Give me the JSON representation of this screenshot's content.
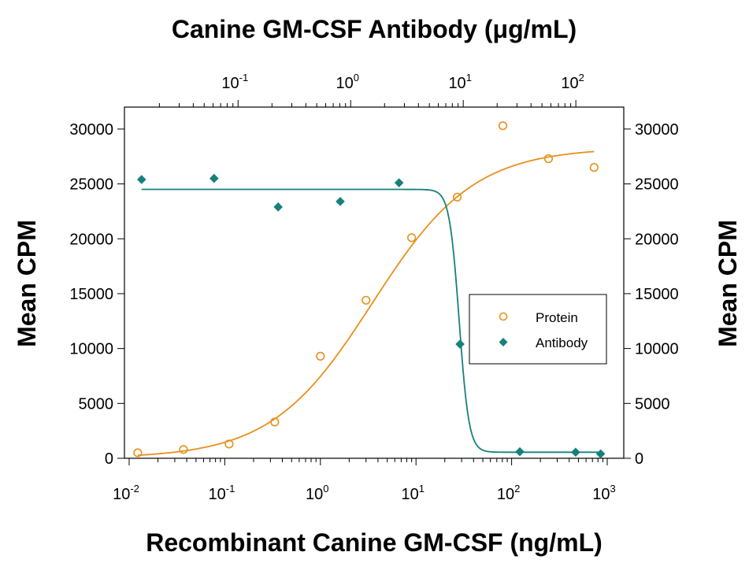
{
  "chart_data": {
    "type": "scatter",
    "title": "Canine GM-CSF Antibody (μg/mL)",
    "xlabel": "Recombinant Canine GM-CSF (ng/mL)",
    "x2label": "Canine GM-CSF Antibody (μg/mL)",
    "ylabel": "Mean CPM",
    "y2label": "Mean CPM",
    "x_scale": "log",
    "xlim": [
      0.01,
      1000
    ],
    "x2_scale": "log",
    "x2lim": [
      0.0115,
      190
    ],
    "ylim": [
      0,
      32000
    ],
    "x_ticks": [
      {
        "base": "10",
        "exp": "-2",
        "value": 0.01
      },
      {
        "base": "10",
        "exp": "-1",
        "value": 0.1
      },
      {
        "base": "10",
        "exp": "0",
        "value": 1
      },
      {
        "base": "10",
        "exp": "1",
        "value": 10
      },
      {
        "base": "10",
        "exp": "2",
        "value": 100
      },
      {
        "base": "10",
        "exp": "3",
        "value": 1000
      }
    ],
    "x2_ticks": [
      {
        "base": "10",
        "exp": "-1",
        "value": 0.1
      },
      {
        "base": "10",
        "exp": "0",
        "value": 1
      },
      {
        "base": "10",
        "exp": "1",
        "value": 10
      },
      {
        "base": "10",
        "exp": "2",
        "value": 100
      }
    ],
    "y_ticks": [
      "0",
      "5000",
      "10000",
      "15000",
      "20000",
      "25000",
      "30000"
    ],
    "grid": false,
    "legend_position": "right-middle",
    "series": [
      {
        "name": "Protein",
        "marker": "open-circle",
        "color": "#e8901c",
        "axis": "bottom",
        "points": [
          {
            "x": 0.0123,
            "y": 500
          },
          {
            "x": 0.037,
            "y": 800
          },
          {
            "x": 0.111,
            "y": 1300
          },
          {
            "x": 0.333,
            "y": 3300
          },
          {
            "x": 1.0,
            "y": 9300
          },
          {
            "x": 3.0,
            "y": 14400
          },
          {
            "x": 9.0,
            "y": 20100
          },
          {
            "x": 27.0,
            "y": 23800
          },
          {
            "x": 81.0,
            "y": 30300
          },
          {
            "x": 243.0,
            "y": 27300
          },
          {
            "x": 729.0,
            "y": 26500
          }
        ],
        "fit": {
          "bottom": 0,
          "top": 28300,
          "ec50": 3.5,
          "hill": 0.82
        }
      },
      {
        "name": "Antibody",
        "marker": "filled-diamond",
        "color": "#17807a",
        "axis": "top",
        "points": [
          {
            "x": 0.0139,
            "y": 25400
          },
          {
            "x": 0.0612,
            "y": 25500
          },
          {
            "x": 0.227,
            "y": 22900
          },
          {
            "x": 0.808,
            "y": 23400
          },
          {
            "x": 2.69,
            "y": 25100
          },
          {
            "x": 9.36,
            "y": 10400
          },
          {
            "x": 31.8,
            "y": 600
          },
          {
            "x": 99.6,
            "y": 550
          },
          {
            "x": 166.0,
            "y": 400
          }
        ],
        "fit": {
          "bottom": 550,
          "top": 24500,
          "ec50": 9.2,
          "hill": 10
        }
      }
    ]
  }
}
